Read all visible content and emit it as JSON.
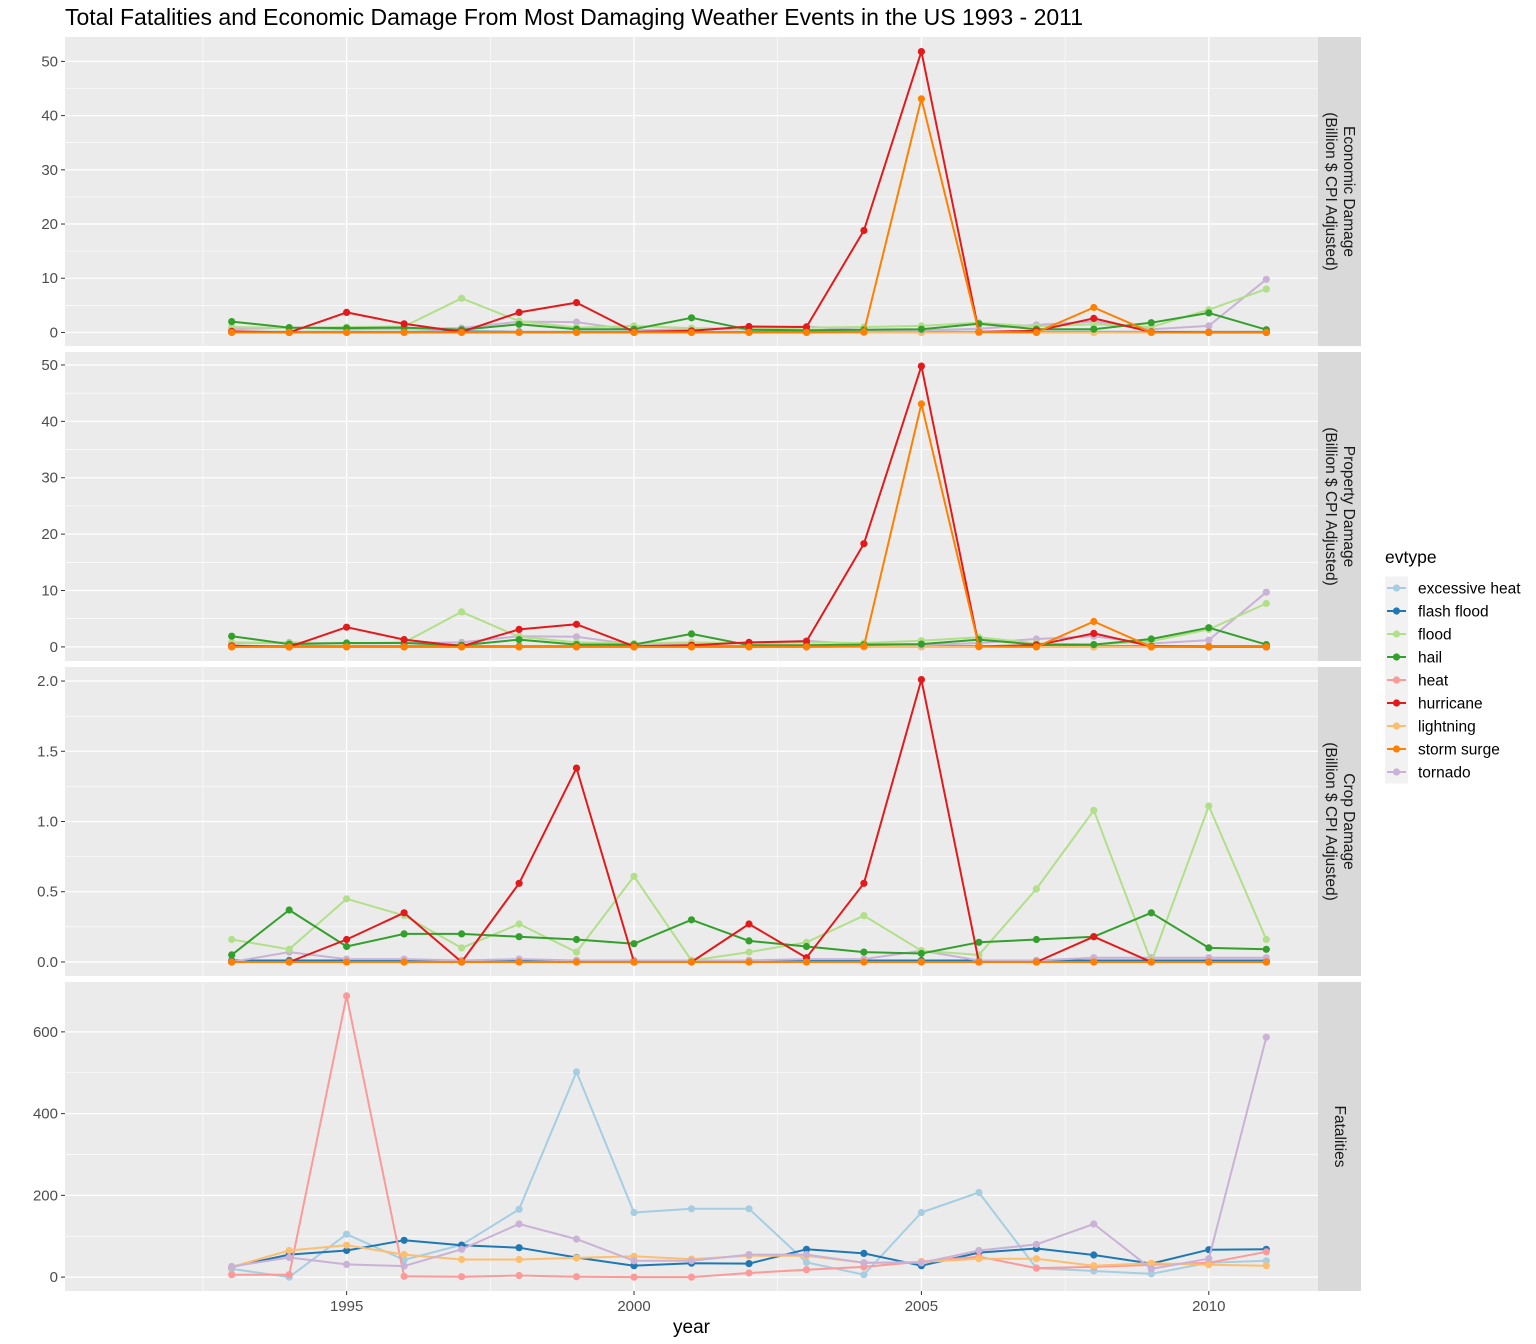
{
  "chart_data": {
    "type": "line",
    "title": "Total Fatalities and Economic Damage From Most Damaging Weather Events in the US 1993 - 2011",
    "xlabel": "year",
    "ylabel": "",
    "x": [
      1993,
      1994,
      1995,
      1996,
      1997,
      1998,
      1999,
      2000,
      2001,
      2002,
      2003,
      2004,
      2005,
      2006,
      2007,
      2008,
      2009,
      2010,
      2011
    ],
    "xlim": [
      1990.1,
      2011.9
    ],
    "x_ticks": [
      1995,
      2000,
      2005,
      2010
    ],
    "x_tick_labels": [
      "1995",
      "2000",
      "2005",
      "2010"
    ],
    "grid": true,
    "legend": {
      "title": "evtype",
      "position": "right",
      "entries": [
        "excessive heat",
        "flash flood",
        "flood",
        "hail",
        "heat",
        "hurricane",
        "lightning",
        "storm surge",
        "tornado"
      ]
    },
    "colors": {
      "excessive heat": "#a6cee3",
      "flash flood": "#1f78b4",
      "flood": "#b2df8a",
      "hail": "#33a02c",
      "heat": "#fb9a99",
      "hurricane": "#e31a1c",
      "lightning": "#fdbf6f",
      "storm surge": "#ff7f00",
      "tornado": "#cab2d6"
    },
    "draw_order": [
      "excessive heat",
      "flash flood",
      "heat",
      "lightning",
      "tornado",
      "flood",
      "hail",
      "hurricane",
      "storm surge"
    ],
    "panels": [
      {
        "strip_lines": [
          "Economic Damage",
          "(Billion $ CPI Adjusted)"
        ],
        "ylim": [
          -2.5,
          54.5
        ],
        "y_ticks": [
          0,
          10,
          20,
          30,
          40,
          50
        ],
        "y_tick_labels": [
          "0",
          "10",
          "20",
          "30",
          "40",
          "50"
        ],
        "series": [
          {
            "name": "hurricane",
            "values": [
              0.2,
              0,
              3.7,
              1.6,
              0.1,
              3.7,
              5.5,
              0.1,
              0.3,
              1.1,
              1.0,
              18.8,
              51.8,
              0.1,
              0.3,
              2.6,
              0.1,
              0,
              0
            ]
          },
          {
            "name": "storm surge",
            "values": [
              0,
              0,
              0,
              0,
              0,
              0,
              0,
              0,
              0,
              0,
              0,
              0.1,
              43.1,
              0.1,
              0,
              4.6,
              0,
              0,
              0
            ]
          },
          {
            "name": "flood",
            "values": [
              1.0,
              0.8,
              1.0,
              1.1,
              6.3,
              2.1,
              0.9,
              1.2,
              0.8,
              0.7,
              0.9,
              1.0,
              1.2,
              1.8,
              1.1,
              1.5,
              1.0,
              4.2,
              8.0
            ]
          },
          {
            "name": "hail",
            "values": [
              2.0,
              0.9,
              0.8,
              0.9,
              0.5,
              1.5,
              0.6,
              0.6,
              2.7,
              0.5,
              0.4,
              0.5,
              0.6,
              1.6,
              0.6,
              0.6,
              1.8,
              3.6,
              0.5
            ]
          },
          {
            "name": "tornado",
            "values": [
              0.6,
              0.9,
              0.6,
              0.7,
              0.8,
              2.0,
              1.9,
              0.4,
              0.6,
              0.7,
              1.1,
              0.4,
              0.4,
              0.7,
              1.4,
              2.0,
              0.6,
              1.2,
              9.8
            ]
          },
          {
            "name": "excessive heat",
            "values": [
              0,
              0,
              0,
              0,
              0,
              0,
              0,
              0,
              0,
              0,
              0,
              0,
              0,
              0,
              0,
              0,
              0,
              0,
              0
            ]
          },
          {
            "name": "flash flood",
            "values": [
              0.1,
              0.1,
              0.1,
              0.1,
              0.2,
              0.1,
              0.1,
              0.1,
              0.1,
              0.1,
              0.1,
              0.1,
              0.1,
              0.1,
              0.1,
              0.1,
              0.1,
              0.1,
              0.1
            ]
          },
          {
            "name": "heat",
            "values": [
              0,
              0,
              0,
              0,
              0,
              0,
              0,
              0,
              0,
              0,
              0,
              0,
              0,
              0,
              0,
              0,
              0,
              0,
              0
            ]
          },
          {
            "name": "lightning",
            "values": [
              0,
              0,
              0,
              0,
              0,
              0,
              0,
              0,
              0,
              0,
              0,
              0,
              0,
              0,
              0,
              0,
              0,
              0,
              0
            ]
          }
        ]
      },
      {
        "strip_lines": [
          "Property Damage",
          "(Billion $ CPI Adjusted)"
        ],
        "ylim": [
          -2.5,
          52.3
        ],
        "y_ticks": [
          0,
          10,
          20,
          30,
          40,
          50
        ],
        "y_tick_labels": [
          "0",
          "10",
          "20",
          "30",
          "40",
          "50"
        ],
        "series": [
          {
            "name": "hurricane",
            "values": [
              0.2,
              0,
              3.5,
              1.3,
              0.1,
              3.1,
              4.0,
              0.1,
              0.3,
              0.8,
              1.0,
              18.3,
              49.8,
              0.1,
              0.3,
              2.4,
              0.1,
              0,
              0
            ]
          },
          {
            "name": "storm surge",
            "values": [
              0,
              0,
              0,
              0,
              0,
              0,
              0,
              0,
              0,
              0,
              0,
              0.1,
              43.1,
              0.1,
              0,
              4.5,
              0,
              0,
              0
            ]
          },
          {
            "name": "flood",
            "values": [
              0.8,
              0.7,
              0.6,
              0.8,
              6.2,
              1.8,
              0.8,
              0.6,
              0.8,
              0.6,
              0.8,
              0.7,
              1.1,
              1.7,
              0.6,
              0.4,
              1.0,
              3.1,
              7.7
            ]
          },
          {
            "name": "hail",
            "values": [
              1.9,
              0.5,
              0.7,
              0.7,
              0.3,
              1.3,
              0.4,
              0.4,
              2.3,
              0.3,
              0.3,
              0.4,
              0.5,
              1.3,
              0.4,
              0.4,
              1.4,
              3.4,
              0.4
            ]
          },
          {
            "name": "tornado",
            "values": [
              0.6,
              0.8,
              0.6,
              0.7,
              0.8,
              1.9,
              1.8,
              0.4,
              0.6,
              0.7,
              1.1,
              0.4,
              0.3,
              0.7,
              1.4,
              1.9,
              0.6,
              1.2,
              9.7
            ]
          },
          {
            "name": "excessive heat",
            "values": [
              0,
              0,
              0,
              0,
              0,
              0,
              0,
              0,
              0,
              0,
              0,
              0,
              0,
              0,
              0,
              0,
              0,
              0,
              0
            ]
          },
          {
            "name": "flash flood",
            "values": [
              0.1,
              0.1,
              0.1,
              0.1,
              0.1,
              0.1,
              0.1,
              0.1,
              0.1,
              0.1,
              0.1,
              0.1,
              0.1,
              0.1,
              0.1,
              0.1,
              0.1,
              0.1,
              0.1
            ]
          },
          {
            "name": "heat",
            "values": [
              0,
              0,
              0,
              0,
              0,
              0,
              0,
              0,
              0,
              0,
              0,
              0,
              0,
              0,
              0,
              0,
              0,
              0,
              0
            ]
          },
          {
            "name": "lightning",
            "values": [
              0,
              0,
              0,
              0,
              0,
              0,
              0,
              0,
              0,
              0,
              0,
              0,
              0,
              0,
              0,
              0,
              0,
              0,
              0
            ]
          }
        ]
      },
      {
        "strip_lines": [
          "Crop Damage",
          "(Billion $ CPI Adjusted)"
        ],
        "ylim": [
          -0.1,
          2.1
        ],
        "y_ticks": [
          0,
          0.5,
          1,
          1.5,
          2
        ],
        "y_tick_labels": [
          "0.0",
          "0.5",
          "1.0",
          "1.5",
          "2.0"
        ],
        "series": [
          {
            "name": "hurricane",
            "values": [
              0,
              0,
              0.16,
              0.35,
              0,
              0.56,
              1.38,
              0,
              0,
              0.27,
              0.03,
              0.56,
              2.01,
              0,
              0,
              0.18,
              0,
              0,
              0
            ]
          },
          {
            "name": "storm surge",
            "values": [
              0,
              0,
              0,
              0,
              0,
              0,
              0,
              0,
              0,
              0,
              0,
              0,
              0,
              0,
              0,
              0,
              0,
              0,
              0
            ]
          },
          {
            "name": "flood",
            "values": [
              0.16,
              0.09,
              0.45,
              0.33,
              0.1,
              0.27,
              0.07,
              0.61,
              0.01,
              0.07,
              0.14,
              0.33,
              0.08,
              0.05,
              0.52,
              1.08,
              0,
              1.11,
              0.16
            ]
          },
          {
            "name": "hail",
            "values": [
              0.05,
              0.37,
              0.11,
              0.2,
              0.2,
              0.18,
              0.16,
              0.13,
              0.3,
              0.15,
              0.11,
              0.07,
              0.06,
              0.14,
              0.16,
              0.18,
              0.35,
              0.1,
              0.09
            ]
          },
          {
            "name": "tornado",
            "values": [
              0,
              0.07,
              0.02,
              0.02,
              0.01,
              0.02,
              0.01,
              0.01,
              0.01,
              0.01,
              0.02,
              0.02,
              0.08,
              0.01,
              0.01,
              0.03,
              0.03,
              0.03,
              0.03
            ]
          },
          {
            "name": "excessive heat",
            "values": [
              0,
              0,
              0,
              0,
              0,
              0,
              0,
              0,
              0,
              0,
              0,
              0,
              0,
              0,
              0,
              0,
              0,
              0,
              0
            ]
          },
          {
            "name": "flash flood",
            "values": [
              0.01,
              0.01,
              0.01,
              0.01,
              0.01,
              0.01,
              0.01,
              0.01,
              0.01,
              0.01,
              0.01,
              0.01,
              0.01,
              0.01,
              0.01,
              0.01,
              0.01,
              0.01,
              0.01
            ]
          },
          {
            "name": "heat",
            "values": [
              0,
              0,
              0,
              0,
              0,
              0,
              0,
              0,
              0,
              0,
              0,
              0,
              0,
              0,
              0,
              0,
              0,
              0,
              0
            ]
          },
          {
            "name": "lightning",
            "values": [
              0,
              0,
              0,
              0,
              0,
              0,
              0,
              0,
              0,
              0,
              0,
              0,
              0,
              0,
              0,
              0,
              0,
              0,
              0
            ]
          }
        ]
      },
      {
        "strip_lines": [
          "Fatalities"
        ],
        "ylim": [
          -34,
          722
        ],
        "y_ticks": [
          0,
          200,
          400,
          600
        ],
        "y_tick_labels": [
          "0",
          "200",
          "400",
          "600"
        ],
        "series": [
          {
            "name": "excessive heat",
            "values": [
              20,
              0,
              105,
              42,
              79,
              166,
              502,
              158,
              167,
              167,
              36,
              6,
              158,
              207,
              22,
              15,
              8,
              35,
              40
            ]
          },
          {
            "name": "flash flood",
            "values": [
              25,
              55,
              65,
              90,
              78,
              72,
              48,
              28,
              34,
              33,
              68,
              58,
              28,
              60,
              70,
              54,
              33,
              67,
              68
            ]
          },
          {
            "name": "heat",
            "values": [
              6,
              6,
              688,
              2,
              1,
              4,
              1,
              0,
              0,
              10,
              18,
              25,
              38,
              50,
              22,
              25,
              30,
              35,
              62
            ]
          },
          {
            "name": "lightning",
            "values": [
              25,
              65,
              78,
              55,
              43,
              43,
              47,
              51,
              44,
              52,
              52,
              35,
              37,
              45,
              45,
              28,
              34,
              30,
              28
            ]
          },
          {
            "name": "tornado",
            "values": [
              26,
              48,
              31,
              27,
              68,
              130,
              93,
              40,
              40,
              55,
              55,
              35,
              35,
              65,
              80,
              130,
              20,
              45,
              587
            ]
          }
        ]
      }
    ]
  }
}
